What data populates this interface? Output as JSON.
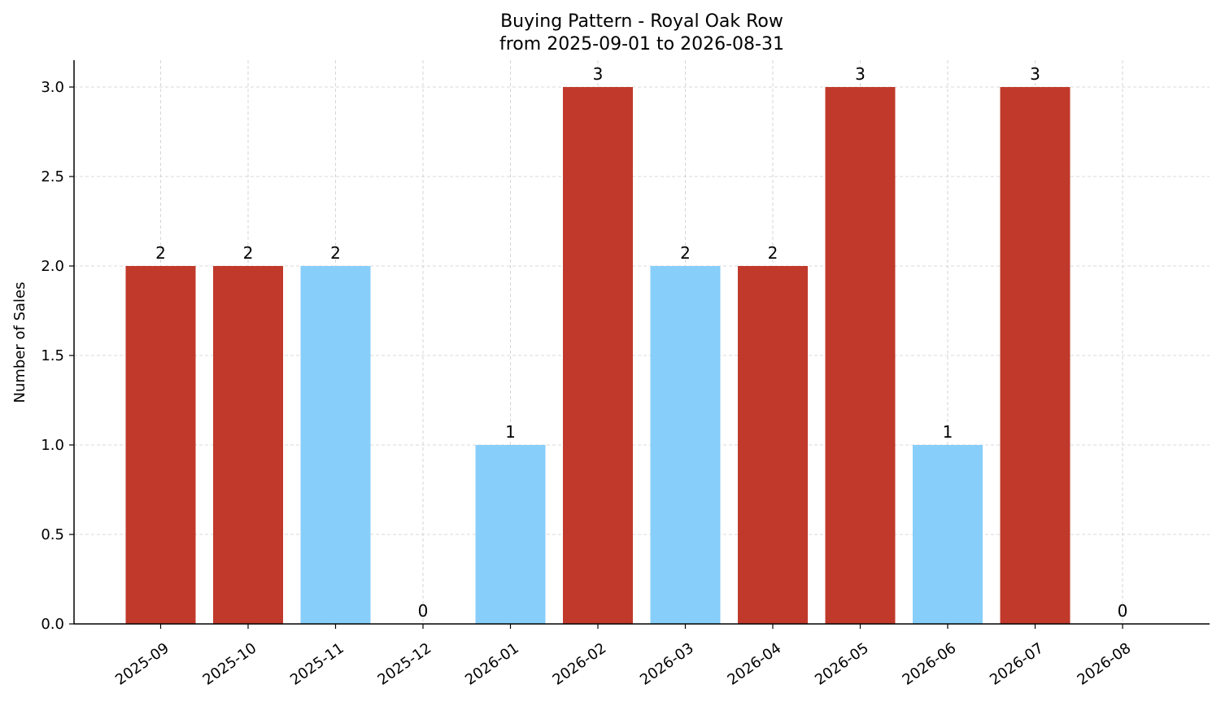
{
  "chart_data": {
    "type": "bar",
    "title": "Buying Pattern - Royal Oak Row",
    "subtitle": "from 2025-09-01 to 2026-08-31",
    "xlabel": "",
    "ylabel": "Number of Sales",
    "categories": [
      "2025-09",
      "2025-10",
      "2025-11",
      "2025-12",
      "2026-01",
      "2026-02",
      "2026-03",
      "2026-04",
      "2026-05",
      "2026-06",
      "2026-07",
      "2026-08"
    ],
    "values": [
      2,
      2,
      2,
      0,
      1,
      3,
      2,
      2,
      3,
      1,
      3,
      0
    ],
    "value_labels": [
      "2",
      "2",
      "2",
      "0",
      "1",
      "3",
      "2",
      "2",
      "3",
      "1",
      "3",
      "0"
    ],
    "bar_colors": [
      "#c0392b",
      "#c0392b",
      "#87cefa",
      "#87cefa",
      "#87cefa",
      "#c0392b",
      "#87cefa",
      "#c0392b",
      "#c0392b",
      "#87cefa",
      "#c0392b",
      "#87cefa"
    ],
    "ylim": [
      0,
      3.15
    ],
    "yticks": [
      0.0,
      0.5,
      1.0,
      1.5,
      2.0,
      2.5,
      3.0
    ],
    "ytick_labels": [
      "0.0",
      "0.5",
      "1.0",
      "1.5",
      "2.0",
      "2.5",
      "3.0"
    ],
    "grid": true,
    "legend": "none"
  }
}
